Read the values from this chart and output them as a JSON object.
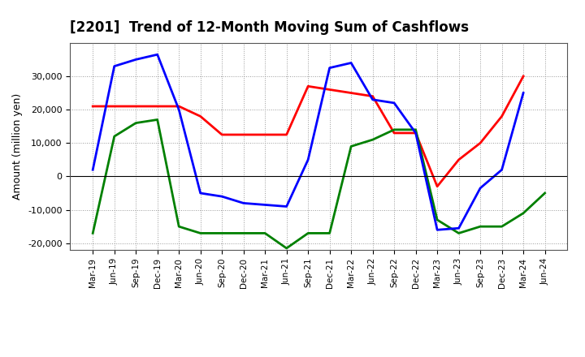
{
  "title": "[2201]  Trend of 12-Month Moving Sum of Cashflows",
  "ylabel": "Amount (million yen)",
  "ylim": [
    -22000,
    40000
  ],
  "yticks": [
    -20000,
    -10000,
    0,
    10000,
    20000,
    30000
  ],
  "background_color": "#ffffff",
  "plot_bg_color": "#ffffff",
  "grid_color": "#999999",
  "labels": [
    "Mar-19",
    "Jun-19",
    "Sep-19",
    "Dec-19",
    "Mar-20",
    "Jun-20",
    "Sep-20",
    "Dec-20",
    "Mar-21",
    "Jun-21",
    "Sep-21",
    "Dec-21",
    "Mar-22",
    "Jun-22",
    "Sep-22",
    "Dec-22",
    "Mar-23",
    "Jun-23",
    "Sep-23",
    "Dec-23",
    "Mar-24",
    "Jun-24"
  ],
  "operating": [
    21000,
    21000,
    21000,
    21000,
    21000,
    18000,
    12500,
    12500,
    12500,
    12500,
    27000,
    26000,
    25000,
    24000,
    13000,
    13000,
    -3000,
    5000,
    10000,
    18000,
    30000,
    null
  ],
  "investing": [
    -17000,
    12000,
    16000,
    17000,
    -15000,
    -17000,
    -17000,
    -17000,
    -17000,
    -21500,
    -17000,
    -17000,
    9000,
    11000,
    14000,
    14000,
    -13000,
    -17000,
    -15000,
    -15000,
    -11000,
    -5000
  ],
  "free": [
    2000,
    33000,
    35000,
    36500,
    20000,
    -5000,
    -6000,
    -8000,
    -8500,
    -9000,
    5000,
    32500,
    34000,
    23000,
    22000,
    13000,
    -16000,
    -15500,
    -3500,
    2000,
    25000,
    null
  ],
  "operating_color": "#ff0000",
  "investing_color": "#008000",
  "free_color": "#0000ff",
  "line_width": 2.0
}
